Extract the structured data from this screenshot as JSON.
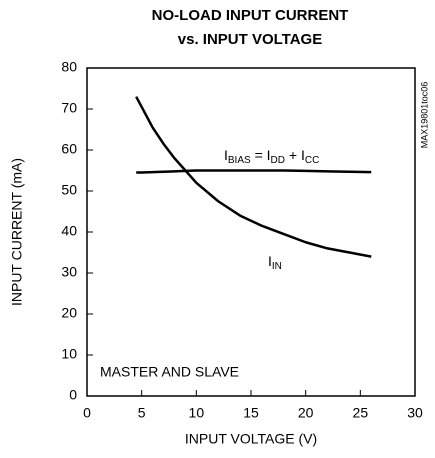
{
  "chart_data": {
    "type": "line",
    "title": [
      "NO-LOAD INPUT CURRENT",
      "vs. INPUT VOLTAGE"
    ],
    "x_label": "INPUT VOLTAGE (V)",
    "y_label": "INPUT CURRENT (mA)",
    "annotation": "MASTER AND SLAVE",
    "side_note": "MAX19801toc06",
    "x": [
      4.5,
      5,
      6,
      7,
      8,
      9,
      10,
      12,
      14,
      16,
      18,
      20,
      22,
      24,
      26
    ],
    "series": [
      {
        "label": [
          {
            "text": "I",
            "sub": "IN"
          }
        ],
        "color": "#000000",
        "values": [
          73,
          70.5,
          65.5,
          61.5,
          58,
          55,
          52,
          47.5,
          44,
          41.5,
          39.5,
          37.5,
          36,
          35,
          34
        ]
      },
      {
        "label": [
          {
            "text": "I",
            "sub": "BIAS"
          },
          {
            "text": " = I",
            "sub": "DD"
          },
          {
            "text": " + I",
            "sub": "CC"
          }
        ],
        "color": "#000000",
        "values": [
          54.5,
          54.5,
          54.6,
          54.7,
          54.8,
          54.9,
          55,
          55,
          55,
          55,
          55,
          54.9,
          54.8,
          54.7,
          54.6
        ]
      }
    ],
    "xlim": [
      0,
      30
    ],
    "xticks": [
      0,
      5,
      10,
      15,
      20,
      25,
      30
    ],
    "ylim": [
      0,
      80
    ],
    "yticks": [
      0,
      10,
      20,
      30,
      40,
      50,
      60,
      70,
      80
    ],
    "grid": false
  }
}
